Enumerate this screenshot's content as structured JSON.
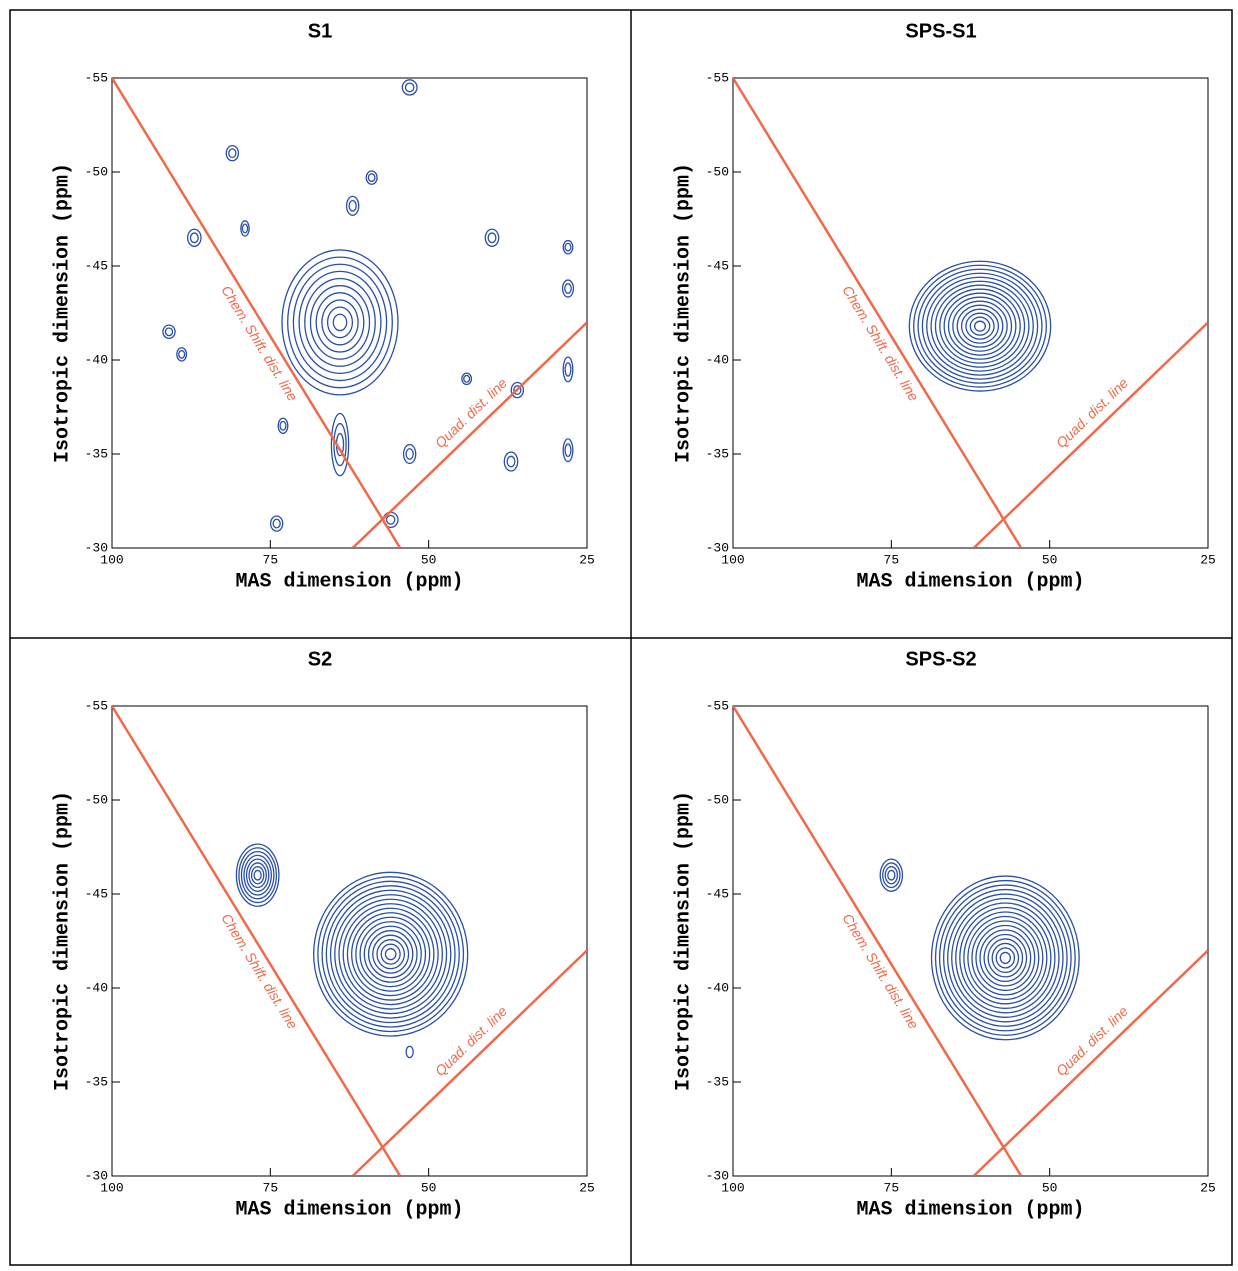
{
  "chart_data": [
    {
      "type": "contour",
      "title": "S1",
      "xlabel": "MAS dimension (ppm)",
      "ylabel": "Isotropic dimension (ppm)",
      "xlim": [
        100,
        25
      ],
      "ylim": [
        -30,
        -55
      ],
      "xticks": [
        100,
        75,
        50,
        25
      ],
      "yticks": [
        -55,
        -50,
        -45,
        -40,
        -35,
        -30
      ],
      "color": "#2a4fa8",
      "lines": [
        {
          "label": "Chem. Shift. dist. line",
          "x": [
            100,
            54.5
          ],
          "y": [
            -55,
            -30
          ],
          "color": "#f2694a"
        },
        {
          "label": "Quad. dist. line",
          "x": [
            62,
            25
          ],
          "y": [
            -30,
            -42
          ],
          "color": "#f2694a"
        }
      ],
      "peaks": [
        {
          "x": 64,
          "y": -42,
          "dx": 9,
          "dy": 3.8,
          "levels": 10
        },
        {
          "x": 64,
          "y": -35.5,
          "dx": 1.2,
          "dy": 1.6,
          "levels": 3
        },
        {
          "x": 53,
          "y": -54.5,
          "dx": 1,
          "dy": 0.35,
          "levels": 2
        },
        {
          "x": 81,
          "y": -51,
          "dx": 0.8,
          "dy": 0.35,
          "levels": 2
        },
        {
          "x": 59,
          "y": -49.7,
          "dx": 0.7,
          "dy": 0.3,
          "levels": 2
        },
        {
          "x": 62,
          "y": -48.2,
          "dx": 0.8,
          "dy": 0.45,
          "levels": 2
        },
        {
          "x": 87,
          "y": -46.5,
          "dx": 0.9,
          "dy": 0.4,
          "levels": 2
        },
        {
          "x": 79,
          "y": -47,
          "dx": 0.5,
          "dy": 0.35,
          "levels": 2
        },
        {
          "x": 40,
          "y": -46.5,
          "dx": 0.9,
          "dy": 0.4,
          "levels": 2
        },
        {
          "x": 28,
          "y": -46,
          "dx": 0.6,
          "dy": 0.3,
          "levels": 2
        },
        {
          "x": 28,
          "y": -43.8,
          "dx": 0.7,
          "dy": 0.4,
          "levels": 2
        },
        {
          "x": 91,
          "y": -41.5,
          "dx": 0.8,
          "dy": 0.3,
          "levels": 2
        },
        {
          "x": 89,
          "y": -40.3,
          "dx": 0.6,
          "dy": 0.3,
          "levels": 2
        },
        {
          "x": 44,
          "y": -39,
          "dx": 0.6,
          "dy": 0.25,
          "levels": 2
        },
        {
          "x": 36,
          "y": -38.4,
          "dx": 0.8,
          "dy": 0.35,
          "levels": 2
        },
        {
          "x": 28,
          "y": -39.5,
          "dx": 0.6,
          "dy": 0.6,
          "levels": 2
        },
        {
          "x": 73,
          "y": -36.5,
          "dx": 0.6,
          "dy": 0.35,
          "levels": 2
        },
        {
          "x": 53,
          "y": -35,
          "dx": 0.8,
          "dy": 0.45,
          "levels": 2
        },
        {
          "x": 37,
          "y": -34.6,
          "dx": 0.9,
          "dy": 0.45,
          "levels": 2
        },
        {
          "x": 28,
          "y": -35.2,
          "dx": 0.6,
          "dy": 0.55,
          "levels": 2
        },
        {
          "x": 74,
          "y": -31.3,
          "dx": 0.8,
          "dy": 0.35,
          "levels": 2
        },
        {
          "x": 56,
          "y": -31.5,
          "dx": 1,
          "dy": 0.35,
          "levels": 2
        }
      ]
    },
    {
      "type": "contour",
      "title": "SPS-S1",
      "xlabel": "MAS dimension (ppm)",
      "ylabel": "Isotropic dimension (ppm)",
      "xlim": [
        100,
        25
      ],
      "ylim": [
        -30,
        -55
      ],
      "xticks": [
        100,
        75,
        50,
        25
      ],
      "yticks": [
        -55,
        -50,
        -45,
        -40,
        -35,
        -30
      ],
      "color": "#2a4fa8",
      "lines": [
        {
          "label": "Chem. Shift. dist. line",
          "x": [
            100,
            54.5
          ],
          "y": [
            -55,
            -30
          ],
          "color": "#f2694a"
        },
        {
          "label": "Quad. dist. line",
          "x": [
            62,
            25
          ],
          "y": [
            -30,
            -42
          ],
          "color": "#f2694a"
        }
      ],
      "peaks": [
        {
          "x": 61,
          "y": -41.8,
          "dx": 11,
          "dy": 3.4,
          "levels": 16
        }
      ]
    },
    {
      "type": "contour",
      "title": "S2",
      "xlabel": "MAS dimension (ppm)",
      "ylabel": "Isotropic dimension (ppm)",
      "xlim": [
        100,
        25
      ],
      "ylim": [
        -30,
        -55
      ],
      "xticks": [
        100,
        75,
        50,
        25
      ],
      "yticks": [
        -55,
        -50,
        -45,
        -40,
        -35,
        -30
      ],
      "color": "#2a4fa8",
      "lines": [
        {
          "label": "Chem. Shift. dist. line",
          "x": [
            100,
            54.5
          ],
          "y": [
            -55,
            -30
          ],
          "color": "#f2694a"
        },
        {
          "label": "Quad. dist. line",
          "x": [
            62,
            25
          ],
          "y": [
            -30,
            -42
          ],
          "color": "#f2694a"
        }
      ],
      "peaks": [
        {
          "x": 56,
          "y": -41.8,
          "dx": 12,
          "dy": 4.3,
          "levels": 18
        },
        {
          "x": 77,
          "y": -46,
          "dx": 3.2,
          "dy": 1.6,
          "levels": 8
        },
        {
          "x": 53,
          "y": -36.6,
          "dx": 0.4,
          "dy": 0.25,
          "levels": 1
        }
      ]
    },
    {
      "type": "contour",
      "title": "SPS-S2",
      "xlabel": "MAS dimension (ppm)",
      "ylabel": "Isotropic dimension (ppm)",
      "xlim": [
        100,
        25
      ],
      "ylim": [
        -30,
        -55
      ],
      "xticks": [
        100,
        75,
        50,
        25
      ],
      "yticks": [
        -55,
        -50,
        -45,
        -40,
        -35,
        -30
      ],
      "color": "#2a4fa8",
      "lines": [
        {
          "label": "Chem. Shift. dist. line",
          "x": [
            100,
            54.5
          ],
          "y": [
            -55,
            -30
          ],
          "color": "#f2694a"
        },
        {
          "label": "Quad. dist. line",
          "x": [
            62,
            25
          ],
          "y": [
            -30,
            -42
          ],
          "color": "#f2694a"
        }
      ],
      "peaks": [
        {
          "x": 57,
          "y": -41.6,
          "dx": 11.5,
          "dy": 4.3,
          "levels": 18
        },
        {
          "x": 75,
          "y": -46,
          "dx": 1.6,
          "dy": 0.8,
          "levels": 4
        }
      ]
    }
  ]
}
